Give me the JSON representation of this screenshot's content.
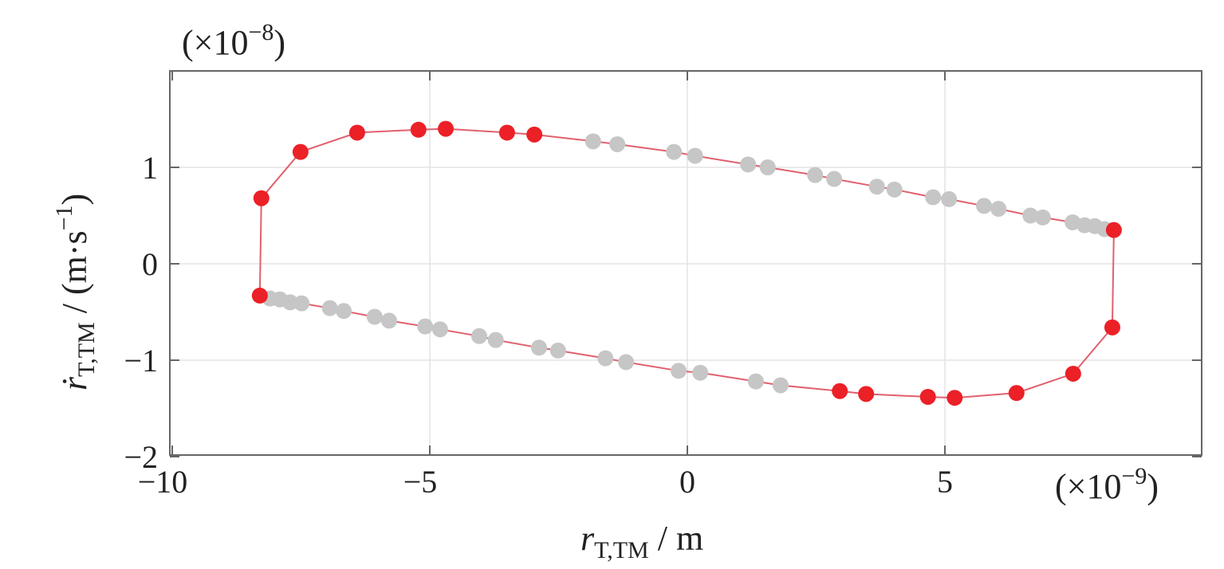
{
  "chart_data": {
    "type": "scatter",
    "title": "",
    "xlabel": {
      "main": "r",
      "sub": "T,TM",
      "unit": " / m"
    },
    "ylabel": {
      "main": "ṙ",
      "sub": "T,TM",
      "unit": " / (m·s",
      "sup": "−1",
      "close": ")"
    },
    "x_multiplier": {
      "open": "(×10",
      "exp": "−9",
      "close": ")"
    },
    "y_multiplier": {
      "open": "(×10",
      "exp": "−8",
      "close": ")"
    },
    "xlim": [
      -10,
      10
    ],
    "ylim": [
      -2,
      2
    ],
    "xticks": [
      -10,
      -5,
      0,
      5
    ],
    "xtick_labels": [
      "−10",
      "−5",
      "0",
      "5"
    ],
    "yticks": [
      1,
      0,
      -1,
      -2
    ],
    "ytick_labels": [
      "1",
      "0",
      "−1",
      "−2"
    ],
    "grid": true,
    "colors": {
      "red": "#ec2027",
      "gray": "#c6c6c6",
      "line": "#e0606e"
    },
    "trajectory_closed": true,
    "points": [
      {
        "x": -8.27,
        "y": 0.68,
        "c": "red"
      },
      {
        "x": -7.51,
        "y": 1.16,
        "c": "red"
      },
      {
        "x": -6.41,
        "y": 1.36,
        "c": "red"
      },
      {
        "x": -5.22,
        "y": 1.39,
        "c": "red"
      },
      {
        "x": -4.69,
        "y": 1.4,
        "c": "red"
      },
      {
        "x": -3.5,
        "y": 1.36,
        "c": "red"
      },
      {
        "x": -2.97,
        "y": 1.34,
        "c": "red"
      },
      {
        "x": -1.83,
        "y": 1.27,
        "c": "gray"
      },
      {
        "x": -1.36,
        "y": 1.24,
        "c": "gray"
      },
      {
        "x": -0.26,
        "y": 1.16,
        "c": "gray"
      },
      {
        "x": 0.15,
        "y": 1.12,
        "c": "gray"
      },
      {
        "x": 1.18,
        "y": 1.03,
        "c": "gray"
      },
      {
        "x": 1.56,
        "y": 1.0,
        "c": "gray"
      },
      {
        "x": 2.48,
        "y": 0.92,
        "c": "gray"
      },
      {
        "x": 2.85,
        "y": 0.88,
        "c": "gray"
      },
      {
        "x": 3.68,
        "y": 0.8,
        "c": "gray"
      },
      {
        "x": 4.02,
        "y": 0.77,
        "c": "gray"
      },
      {
        "x": 4.77,
        "y": 0.69,
        "c": "gray"
      },
      {
        "x": 5.08,
        "y": 0.67,
        "c": "gray"
      },
      {
        "x": 5.76,
        "y": 0.6,
        "c": "gray"
      },
      {
        "x": 6.04,
        "y": 0.57,
        "c": "gray"
      },
      {
        "x": 6.66,
        "y": 0.5,
        "c": "gray"
      },
      {
        "x": 6.9,
        "y": 0.48,
        "c": "gray"
      },
      {
        "x": 7.48,
        "y": 0.43,
        "c": "gray"
      },
      {
        "x": 7.71,
        "y": 0.4,
        "c": "gray"
      },
      {
        "x": 7.91,
        "y": 0.39,
        "c": "gray"
      },
      {
        "x": 8.1,
        "y": 0.36,
        "c": "gray"
      },
      {
        "x": 8.28,
        "y": 0.35,
        "c": "red"
      },
      {
        "x": 8.25,
        "y": -0.66,
        "c": "red"
      },
      {
        "x": 7.49,
        "y": -1.14,
        "c": "red"
      },
      {
        "x": 6.39,
        "y": -1.34,
        "c": "red"
      },
      {
        "x": 5.19,
        "y": -1.39,
        "c": "red"
      },
      {
        "x": 4.67,
        "y": -1.38,
        "c": "red"
      },
      {
        "x": 3.47,
        "y": -1.35,
        "c": "red"
      },
      {
        "x": 2.96,
        "y": -1.32,
        "c": "red"
      },
      {
        "x": 1.81,
        "y": -1.26,
        "c": "gray"
      },
      {
        "x": 1.33,
        "y": -1.22,
        "c": "gray"
      },
      {
        "x": 0.25,
        "y": -1.13,
        "c": "gray"
      },
      {
        "x": -0.17,
        "y": -1.11,
        "c": "gray"
      },
      {
        "x": -1.19,
        "y": -1.02,
        "c": "gray"
      },
      {
        "x": -1.59,
        "y": -0.98,
        "c": "gray"
      },
      {
        "x": -2.51,
        "y": -0.9,
        "c": "gray"
      },
      {
        "x": -2.88,
        "y": -0.87,
        "c": "gray"
      },
      {
        "x": -3.72,
        "y": -0.79,
        "c": "gray"
      },
      {
        "x": -4.04,
        "y": -0.75,
        "c": "gray"
      },
      {
        "x": -4.8,
        "y": -0.68,
        "c": "gray"
      },
      {
        "x": -5.09,
        "y": -0.65,
        "c": "gray"
      },
      {
        "x": -5.79,
        "y": -0.59,
        "c": "gray"
      },
      {
        "x": -6.07,
        "y": -0.55,
        "c": "gray"
      },
      {
        "x": -6.67,
        "y": -0.49,
        "c": "gray"
      },
      {
        "x": -6.94,
        "y": -0.46,
        "c": "gray"
      },
      {
        "x": -7.49,
        "y": -0.41,
        "c": "gray"
      },
      {
        "x": -7.71,
        "y": -0.4,
        "c": "gray"
      },
      {
        "x": -7.91,
        "y": -0.37,
        "c": "gray"
      },
      {
        "x": -8.1,
        "y": -0.36,
        "c": "gray"
      },
      {
        "x": -8.3,
        "y": -0.33,
        "c": "red"
      }
    ]
  }
}
